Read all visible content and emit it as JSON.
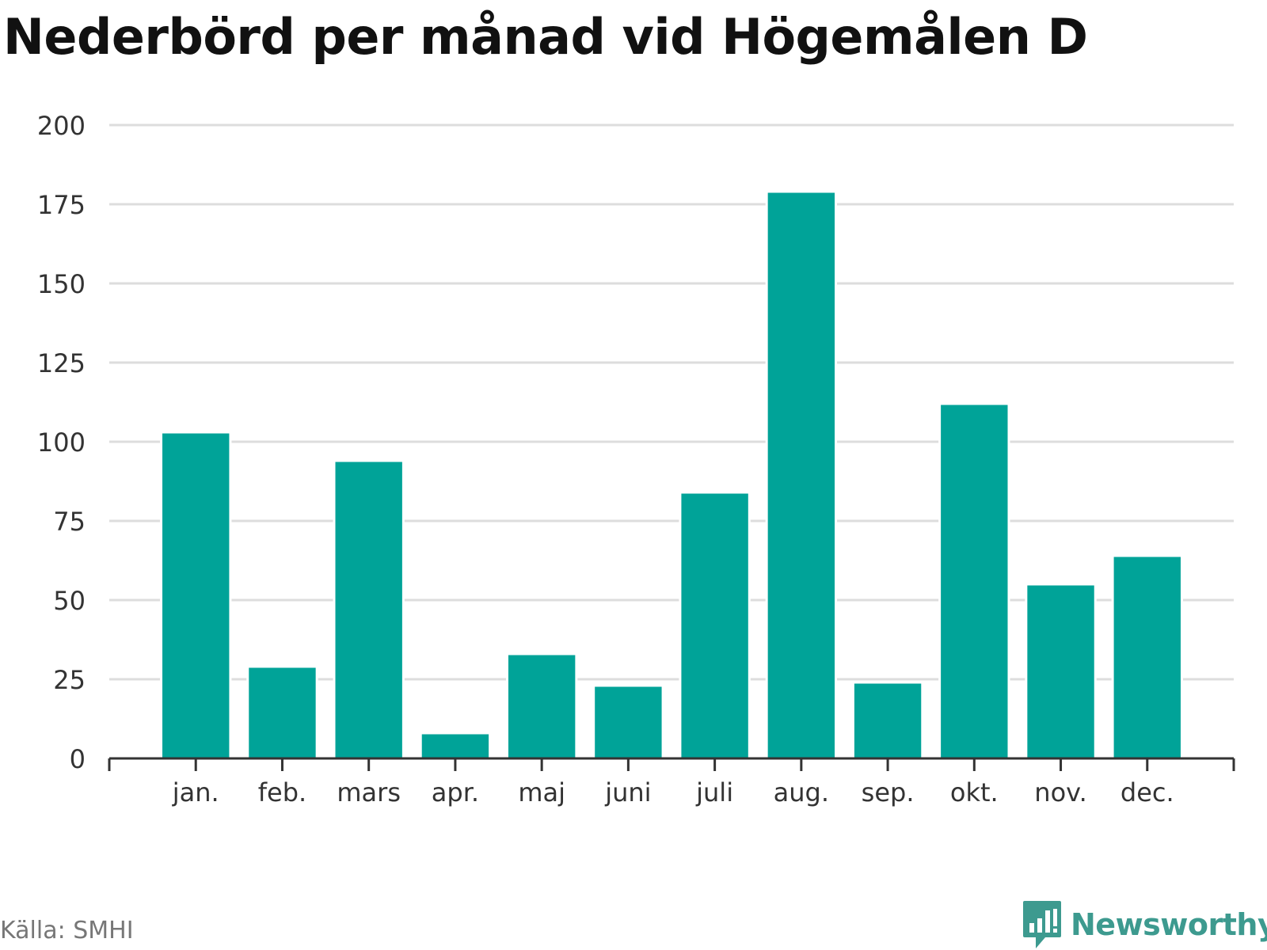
{
  "title": "Nederbörd per månad vid Högemålen D",
  "source": "Källa: SMHI",
  "brand": {
    "name": "Newsworthy",
    "icon": "bar-chart-speech-bubble-icon",
    "color": "#3d9a8f"
  },
  "colors": {
    "bar": "#00a398",
    "grid": "#dddddd",
    "axis": "#333333",
    "text": "#333333"
  },
  "chart_data": {
    "type": "bar",
    "categories": [
      "jan.",
      "feb.",
      "mars",
      "apr.",
      "maj",
      "juni",
      "juli",
      "aug.",
      "sep.",
      "okt.",
      "nov.",
      "dec."
    ],
    "values": [
      103,
      29,
      94,
      8,
      33,
      23,
      84,
      179,
      24,
      112,
      55,
      64
    ],
    "ylim": [
      0,
      200
    ],
    "yticks": [
      0,
      25,
      50,
      75,
      100,
      125,
      150,
      175,
      200
    ],
    "grid": true,
    "legend": "none"
  }
}
